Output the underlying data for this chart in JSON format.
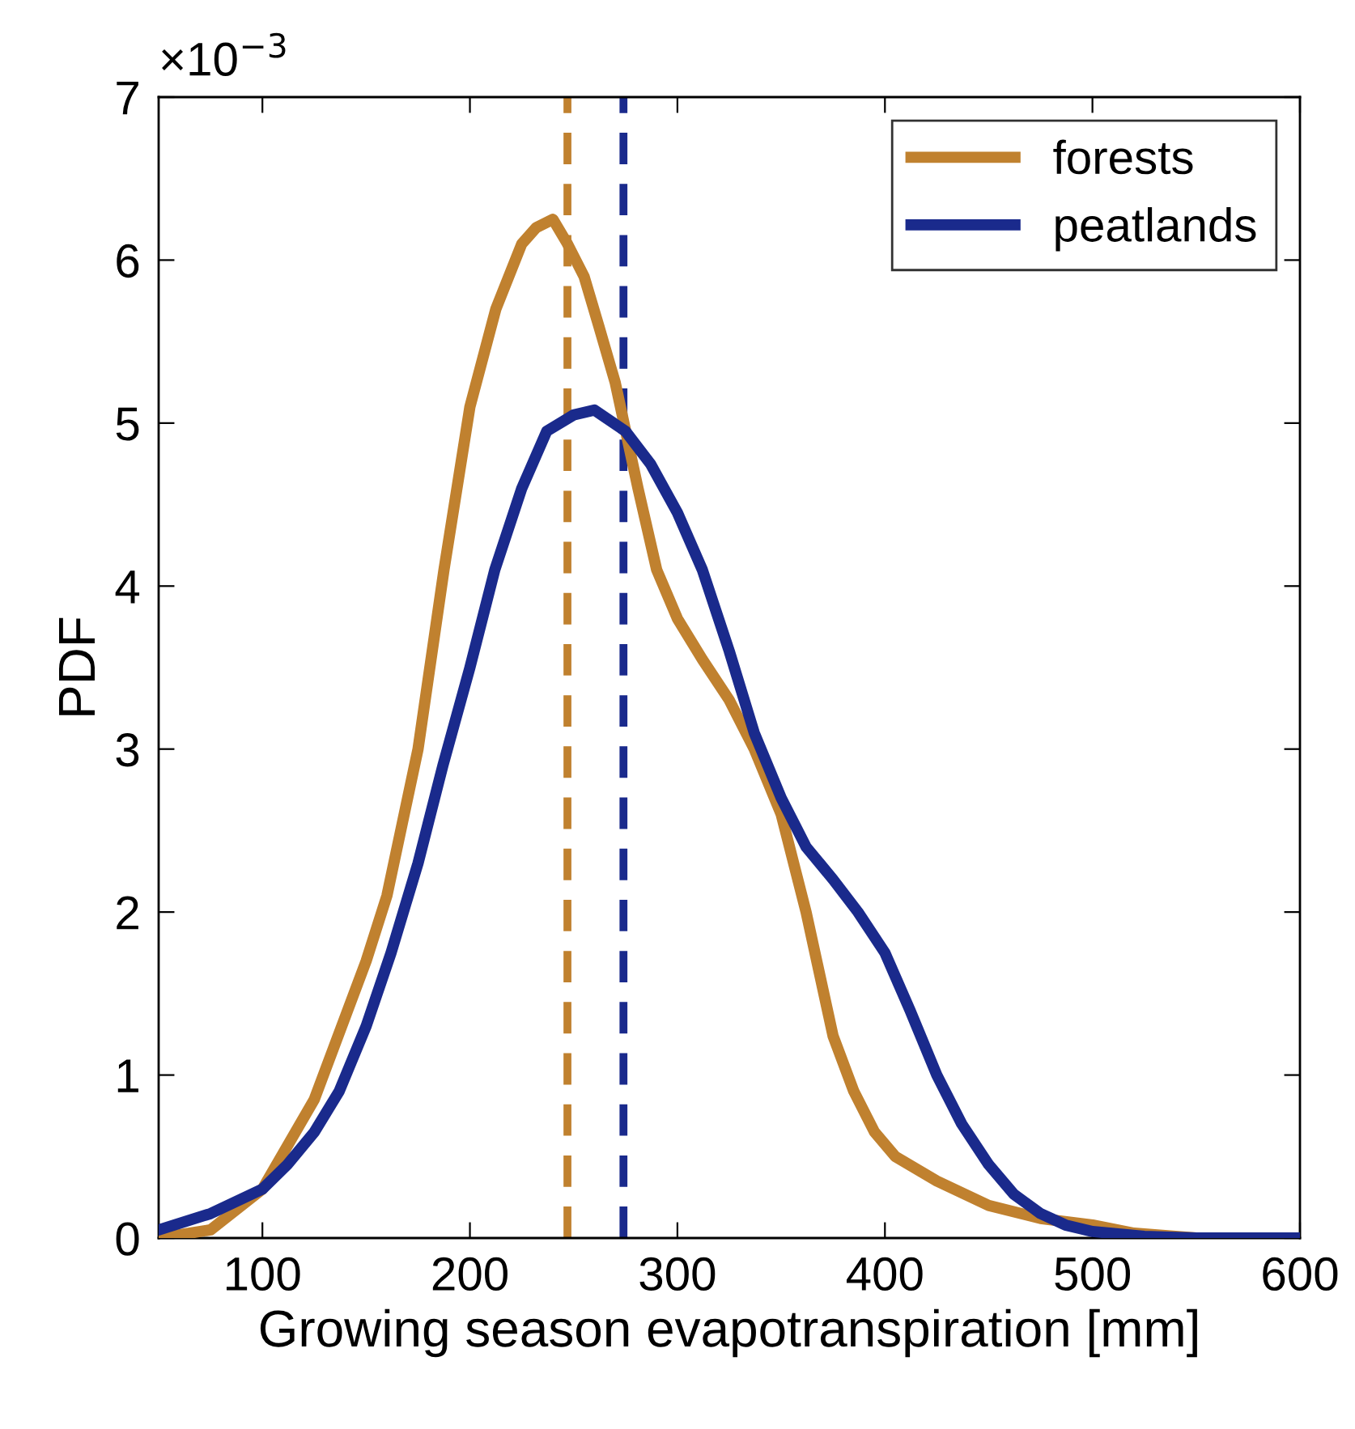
{
  "chart_data": {
    "type": "line",
    "xlabel": "Growing season evapotranspiration [mm]",
    "ylabel": "PDF",
    "annotations": [
      "×10$^{−3}$"
    ],
    "xlim": [
      50,
      600
    ],
    "xticks": [
      100,
      200,
      300,
      400,
      500,
      600
    ],
    "ylim": [
      0,
      7
    ],
    "yticks": [
      0,
      1,
      2,
      3,
      4,
      5,
      6,
      7
    ],
    "grid": false,
    "legend": "top right",
    "line_style": "solid",
    "marker": "none",
    "series": [
      {
        "name": "forests",
        "color": "#c0812f",
        "x": [
          50,
          75,
          100,
          125,
          150,
          160,
          175,
          187.5,
          200,
          212.5,
          225,
          232,
          240,
          247,
          255,
          262,
          270,
          281,
          290,
          300,
          312,
          325,
          337,
          350,
          362,
          375,
          385,
          395,
          405,
          425,
          450,
          475,
          500,
          520,
          550,
          600
        ],
        "values": [
          0.0,
          0.05,
          0.3,
          0.85,
          1.7,
          2.1,
          3.0,
          4.1,
          5.1,
          5.7,
          6.1,
          6.2,
          6.25,
          6.1,
          5.9,
          5.6,
          5.25,
          4.6,
          4.1,
          3.8,
          3.55,
          3.3,
          3.0,
          2.6,
          2.0,
          1.24,
          0.9,
          0.65,
          0.5,
          0.35,
          0.2,
          0.12,
          0.08,
          0.03,
          0.0,
          0.0
        ]
      },
      {
        "name": "peatlands",
        "color": "#1a2a8c",
        "x": [
          50,
          75,
          100,
          112,
          125,
          137,
          150,
          162,
          175,
          187,
          200,
          212,
          225,
          237,
          250,
          260,
          275,
          287,
          300,
          312,
          325,
          337,
          350,
          362,
          375,
          387,
          400,
          412,
          425,
          437,
          450,
          462,
          475,
          487,
          500,
          525,
          550,
          600
        ],
        "values": [
          0.05,
          0.15,
          0.3,
          0.45,
          0.65,
          0.9,
          1.3,
          1.75,
          2.3,
          2.9,
          3.5,
          4.1,
          4.6,
          4.95,
          5.05,
          5.08,
          4.95,
          4.75,
          4.45,
          4.1,
          3.6,
          3.1,
          2.7,
          2.4,
          2.2,
          2.0,
          1.75,
          1.4,
          1.0,
          0.7,
          0.45,
          0.27,
          0.15,
          0.08,
          0.04,
          0.01,
          0.0,
          0.0
        ]
      }
    ],
    "ref_lines": [
      {
        "axis": "x",
        "value": 247,
        "color": "#c0812f",
        "line_style": "dashed"
      },
      {
        "axis": "x",
        "value": 274,
        "color": "#1a2a8c",
        "line_style": "dashed"
      }
    ]
  }
}
